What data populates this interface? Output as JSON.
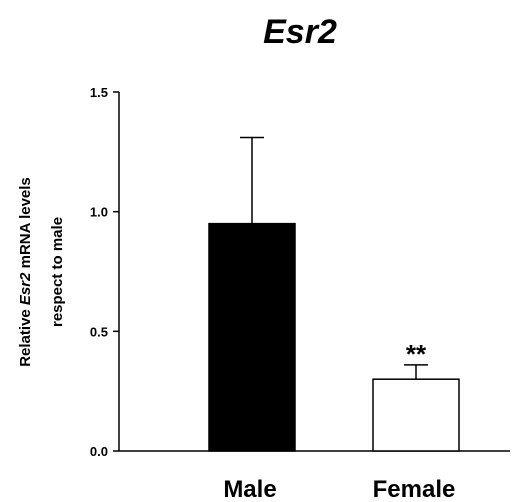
{
  "chart_data": {
    "type": "bar",
    "title": "Esr2",
    "categories": [
      "Male",
      "Female"
    ],
    "values": [
      0.95,
      0.3
    ],
    "errors": [
      0.36,
      0.06
    ],
    "bar_colors": [
      "#000000",
      "#ffffff"
    ],
    "ylabel_line1_prefix": "Relative ",
    "ylabel_line1_italic": "Esr2",
    "ylabel_line1_suffix": " mRNA levels",
    "ylabel_line2": "respect to male",
    "ylim": [
      0,
      1.5
    ],
    "yticks": [
      "0.0",
      "0.5",
      "1.0",
      "1.5"
    ],
    "annotations": [
      {
        "category": "Female",
        "text": "**"
      }
    ],
    "grid": false,
    "legend": "none"
  }
}
